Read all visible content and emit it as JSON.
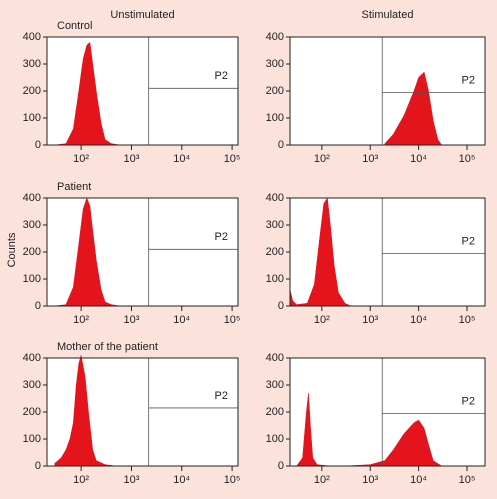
{
  "chart_data": [
    {
      "type": "area",
      "title": "Control",
      "subtitle": "Unstimulated",
      "color": "#e3141b",
      "x": [
        30,
        50,
        70,
        90,
        110,
        130,
        150,
        170,
        200,
        250,
        300,
        400,
        600
      ],
      "values": [
        0,
        5,
        60,
        200,
        320,
        370,
        380,
        300,
        200,
        80,
        20,
        5,
        0
      ],
      "xlim": [
        21,
        131000
      ],
      "ylim": [
        0,
        400
      ],
      "log_x": true,
      "xticks": [
        {
          "value": 100,
          "label": "10²"
        },
        {
          "value": 1000,
          "label": "10³"
        },
        {
          "value": 10000,
          "label": "10⁴"
        },
        {
          "value": 100000,
          "label": "10⁵"
        }
      ],
      "yticks": [
        0,
        100,
        200,
        300,
        400
      ],
      "gate": {
        "x": 2200,
        "y": 210,
        "label": "P2"
      }
    },
    {
      "type": "area",
      "subtitle": "Stimulated",
      "color": "#e3141b",
      "x": [
        2000,
        3000,
        5000,
        8000,
        10000,
        13000,
        16000,
        20000,
        25000,
        30000
      ],
      "values": [
        5,
        40,
        110,
        200,
        250,
        270,
        200,
        90,
        20,
        0
      ],
      "xlim": [
        22,
        235000
      ],
      "ylim": [
        0,
        400
      ],
      "log_x": true,
      "xticks": [
        {
          "value": 100,
          "label": "10²"
        },
        {
          "value": 1000,
          "label": "10³"
        },
        {
          "value": 10000,
          "label": "10⁴"
        },
        {
          "value": 100000,
          "label": "10⁵"
        }
      ],
      "yticks": [
        0,
        100,
        200,
        300,
        400
      ],
      "gate": {
        "x": 1770,
        "y": 195,
        "label": "P2"
      }
    },
    {
      "type": "area",
      "title": "Patient",
      "ylabel": "Counts",
      "color": "#e3141b",
      "x": [
        30,
        50,
        70,
        90,
        110,
        130,
        150,
        170,
        200,
        250,
        300,
        400,
        600
      ],
      "values": [
        0,
        5,
        70,
        230,
        360,
        400,
        370,
        280,
        170,
        60,
        15,
        5,
        0
      ],
      "xlim": [
        21,
        131000
      ],
      "ylim": [
        0,
        400
      ],
      "log_x": true,
      "xticks": [
        {
          "value": 100,
          "label": "10²"
        },
        {
          "value": 1000,
          "label": "10³"
        },
        {
          "value": 10000,
          "label": "10⁴"
        },
        {
          "value": 100000,
          "label": "10⁵"
        }
      ],
      "yticks": [
        0,
        100,
        200,
        300,
        400
      ],
      "gate": {
        "x": 2200,
        "y": 210,
        "label": "P2"
      }
    },
    {
      "type": "area",
      "color": "#e3141b",
      "x": [
        22,
        25,
        30,
        50,
        70,
        90,
        110,
        130,
        150,
        180,
        220,
        300,
        400
      ],
      "values": [
        60,
        20,
        5,
        10,
        80,
        250,
        380,
        400,
        300,
        150,
        50,
        10,
        0
      ],
      "xlim": [
        22,
        235000
      ],
      "ylim": [
        0,
        400
      ],
      "log_x": true,
      "xticks": [
        {
          "value": 100,
          "label": "10²"
        },
        {
          "value": 1000,
          "label": "10³"
        },
        {
          "value": 10000,
          "label": "10⁴"
        },
        {
          "value": 100000,
          "label": "10⁵"
        }
      ],
      "yticks": [
        0,
        100,
        200,
        300,
        400
      ],
      "gate": {
        "x": 1770,
        "y": 195,
        "label": "P2"
      }
    },
    {
      "type": "area",
      "title": "Mother of the patient",
      "color": "#e3141b",
      "x": [
        30,
        40,
        50,
        60,
        70,
        80,
        90,
        100,
        120,
        140,
        170,
        200,
        300,
        500
      ],
      "values": [
        10,
        30,
        60,
        100,
        160,
        300,
        380,
        410,
        330,
        200,
        60,
        20,
        5,
        0
      ],
      "xlim": [
        21,
        131000
      ],
      "ylim": [
        0,
        400
      ],
      "log_x": true,
      "xticks": [
        {
          "value": 100,
          "label": "10²"
        },
        {
          "value": 1000,
          "label": "10³"
        },
        {
          "value": 10000,
          "label": "10⁴"
        },
        {
          "value": 100000,
          "label": "10⁵"
        }
      ],
      "yticks": [
        0,
        100,
        200,
        300,
        400
      ],
      "gate": {
        "x": 2200,
        "y": 215,
        "label": "P2"
      }
    },
    {
      "type": "area",
      "color": "#e3141b",
      "x": [
        30,
        40,
        48,
        53,
        58,
        65,
        80,
        150,
        300,
        1000,
        2000,
        3000,
        5000,
        8000,
        10000,
        13000,
        16000,
        20000,
        30000
      ],
      "values": [
        0,
        30,
        200,
        270,
        150,
        30,
        5,
        0,
        0,
        5,
        20,
        60,
        120,
        160,
        170,
        140,
        80,
        20,
        0
      ],
      "xlim": [
        22,
        235000
      ],
      "ylim": [
        0,
        400
      ],
      "log_x": true,
      "xticks": [
        {
          "value": 100,
          "label": "10²"
        },
        {
          "value": 1000,
          "label": "10³"
        },
        {
          "value": 10000,
          "label": "10⁴"
        },
        {
          "value": 100000,
          "label": "10⁵"
        }
      ],
      "yticks": [
        0,
        100,
        200,
        300,
        400
      ],
      "gate": {
        "x": 1770,
        "y": 195,
        "label": "P2"
      }
    }
  ]
}
